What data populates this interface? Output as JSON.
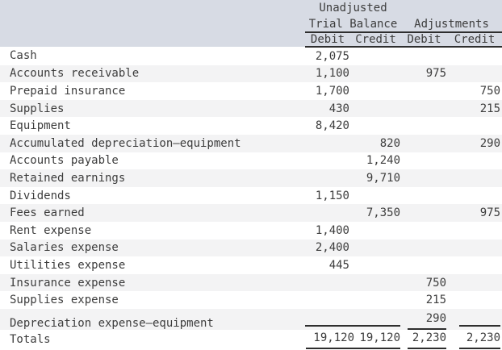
{
  "header": {
    "group_unadjusted_line1": "Unadjusted",
    "group_unadjusted_line2": "Trial Balance",
    "group_adjustments": "Adjustments",
    "col_labels": [
      "Debit",
      "Credit",
      "Debit",
      "Credit"
    ]
  },
  "rows": [
    {
      "account": "Cash",
      "utb_debit": "2,075",
      "utb_credit": "",
      "adj_debit": "",
      "adj_credit": ""
    },
    {
      "account": "Accounts receivable",
      "utb_debit": "1,100",
      "utb_credit": "",
      "adj_debit": "975",
      "adj_credit": ""
    },
    {
      "account": "Prepaid insurance",
      "utb_debit": "1,700",
      "utb_credit": "",
      "adj_debit": "",
      "adj_credit": "750"
    },
    {
      "account": "Supplies",
      "utb_debit": "430",
      "utb_credit": "",
      "adj_debit": "",
      "adj_credit": "215"
    },
    {
      "account": "Equipment",
      "utb_debit": "8,420",
      "utb_credit": "",
      "adj_debit": "",
      "adj_credit": ""
    },
    {
      "account": "Accumulated depreciation—equipment",
      "utb_debit": "",
      "utb_credit": "820",
      "adj_debit": "",
      "adj_credit": "290"
    },
    {
      "account": "Accounts payable",
      "utb_debit": "",
      "utb_credit": "1,240",
      "adj_debit": "",
      "adj_credit": ""
    },
    {
      "account": "Retained earnings",
      "utb_debit": "",
      "utb_credit": "9,710",
      "adj_debit": "",
      "adj_credit": ""
    },
    {
      "account": "Dividends",
      "utb_debit": "1,150",
      "utb_credit": "",
      "adj_debit": "",
      "adj_credit": ""
    },
    {
      "account": "Fees earned",
      "utb_debit": "",
      "utb_credit": "7,350",
      "adj_debit": "",
      "adj_credit": "975"
    },
    {
      "account": "Rent expense",
      "utb_debit": "1,400",
      "utb_credit": "",
      "adj_debit": "",
      "adj_credit": ""
    },
    {
      "account": "Salaries expense",
      "utb_debit": "2,400",
      "utb_credit": "",
      "adj_debit": "",
      "adj_credit": ""
    },
    {
      "account": "Utilities expense",
      "utb_debit": "445",
      "utb_credit": "",
      "adj_debit": "",
      "adj_credit": ""
    },
    {
      "account": "Insurance expense",
      "utb_debit": "",
      "utb_credit": "",
      "adj_debit": "750",
      "adj_credit": ""
    },
    {
      "account": "Supplies expense",
      "utb_debit": "",
      "utb_credit": "",
      "adj_debit": "215",
      "adj_credit": ""
    },
    {
      "account": "Depreciation expense—equipment",
      "utb_debit": "",
      "utb_credit": "",
      "adj_debit": "290",
      "adj_credit": "",
      "underline": true
    }
  ],
  "totals": {
    "label": "Totals",
    "utb_debit": "19,120",
    "utb_credit": "19,120",
    "adj_debit": "2,230",
    "adj_credit": "2,230"
  },
  "colors": {
    "header_bg": "#d7dbe4",
    "stripe": "#f3f3f4",
    "text": "#3d3d3d",
    "rule": "#2e2e2e"
  }
}
